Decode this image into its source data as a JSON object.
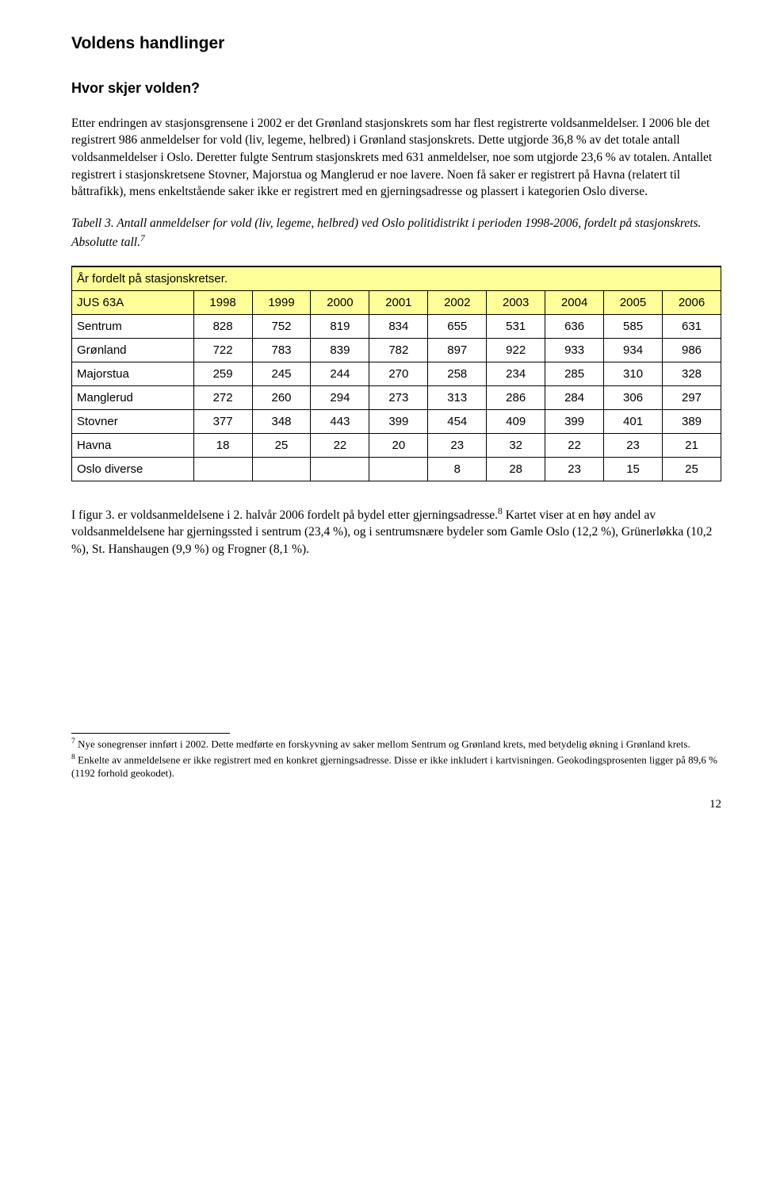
{
  "heading": "Voldens handlinger",
  "subheading": "Hvor skjer volden?",
  "para1": "Etter endringen av stasjonsgrensene i 2002 er det Grønland stasjonskrets som har flest registrerte voldsanmeldelser. I 2006 ble det registrert 986 anmeldelser for vold (liv, legeme, helbred) i Grønland stasjonskrets. Dette utgjorde 36,8 % av det totale antall voldsanmeldelser i Oslo. Deretter fulgte Sentrum stasjonskrets med 631 anmeldelser, noe som utgjorde 23,6 % av totalen. Antallet registrert i stasjonskretsene Stovner, Majorstua og Manglerud er noe lavere. Noen få saker er registrert på Havna (relatert til båttrafikk), mens enkeltstående saker ikke er registrert med en gjerningsadresse og plassert i kategorien Oslo diverse.",
  "table_caption_pre": "Tabell 3. Antall anmeldelser for vold (liv, legeme, helbred) ved Oslo politidistrikt i perioden 1998-2006, fordelt på stasjonskrets. Absolutte tall.",
  "table_caption_sup": "7",
  "table": {
    "header_row1": "År fordelt på stasjonskretser.",
    "header_row2_first": "JUS 63A",
    "years": [
      "1998",
      "1999",
      "2000",
      "2001",
      "2002",
      "2003",
      "2004",
      "2005",
      "2006"
    ],
    "rows": [
      {
        "label": "Sentrum",
        "cells": [
          "828",
          "752",
          "819",
          "834",
          "655",
          "531",
          "636",
          "585",
          "631"
        ]
      },
      {
        "label": "Grønland",
        "cells": [
          "722",
          "783",
          "839",
          "782",
          "897",
          "922",
          "933",
          "934",
          "986"
        ]
      },
      {
        "label": "Majorstua",
        "cells": [
          "259",
          "245",
          "244",
          "270",
          "258",
          "234",
          "285",
          "310",
          "328"
        ]
      },
      {
        "label": "Manglerud",
        "cells": [
          "272",
          "260",
          "294",
          "273",
          "313",
          "286",
          "284",
          "306",
          "297"
        ]
      },
      {
        "label": "Stovner",
        "cells": [
          "377",
          "348",
          "443",
          "399",
          "454",
          "409",
          "399",
          "401",
          "389"
        ]
      },
      {
        "label": "Havna",
        "cells": [
          "18",
          "25",
          "22",
          "20",
          "23",
          "32",
          "22",
          "23",
          "21"
        ]
      },
      {
        "label": "Oslo diverse",
        "cells": [
          "",
          "",
          "",
          "",
          "8",
          "28",
          "23",
          "15",
          "25"
        ]
      }
    ]
  },
  "para2_pre": "I figur 3. er voldsanmeldelsene i 2. halvår 2006 fordelt på bydel etter gjerningsadresse.",
  "para2_sup": "8",
  "para2_post": " Kartet viser at en høy andel av voldsanmeldelsene har gjerningssted i sentrum (23,4 %), og i sentrumsnære bydeler som Gamle Oslo (12,2 %), Grünerløkka (10,2 %), St. Hanshaugen (9,9 %) og Frogner (8,1 %).",
  "footnote7_sup": "7",
  "footnote7": " Nye sonegrenser innført i 2002. Dette medførte en forskyvning av saker mellom Sentrum og Grønland krets, med betydelig økning i Grønland krets.",
  "footnote8_sup": "8",
  "footnote8": " Enkelte av anmeldelsene er ikke registrert med en konkret gjerningsadresse. Disse er ikke inkludert i kartvisningen. Geokodingsprosenten ligger på 89,6 % (1192 forhold geokodet).",
  "page_number": "12"
}
